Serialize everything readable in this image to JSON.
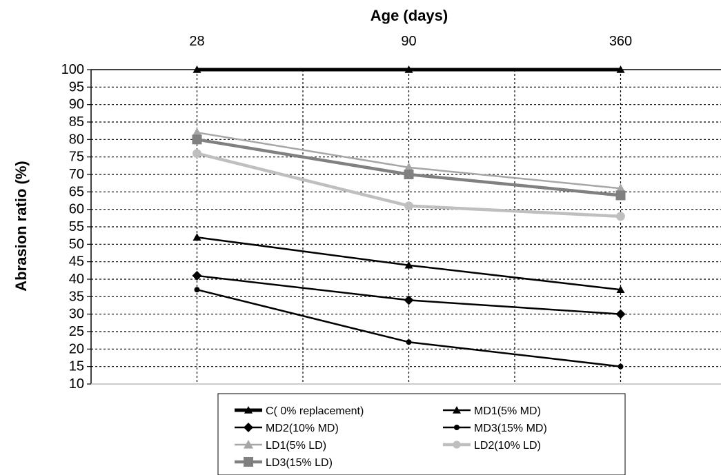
{
  "chart_data": {
    "type": "line",
    "xlabel": "Age (days)",
    "ylabel": "Abrasion ratio (%)",
    "categories": [
      "28",
      "90",
      "360"
    ],
    "ylim": [
      10,
      100
    ],
    "yticks": [
      10,
      15,
      20,
      25,
      30,
      35,
      40,
      45,
      50,
      55,
      60,
      65,
      70,
      75,
      80,
      85,
      90,
      95,
      100
    ],
    "x_axis_position": "top",
    "grid": true,
    "legend_position": "bottom",
    "series": [
      {
        "name": "C( 0% replacement)",
        "values": [
          100,
          100,
          100
        ],
        "color": "#000000",
        "marker": "triangle"
      },
      {
        "name": "MD1(5% MD)",
        "values": [
          52,
          44,
          37
        ],
        "color": "#000000",
        "marker": "triangle"
      },
      {
        "name": "MD2(10% MD)",
        "values": [
          41,
          34,
          30
        ],
        "color": "#000000",
        "marker": "diamond"
      },
      {
        "name": "MD3(15% MD)",
        "values": [
          37,
          22,
          15
        ],
        "color": "#000000",
        "marker": "circle"
      },
      {
        "name": "LD1(5% LD)",
        "values": [
          82,
          72,
          66
        ],
        "color": "#a6a6a6",
        "marker": "triangle"
      },
      {
        "name": "LD2(10% LD)",
        "values": [
          76,
          61,
          58
        ],
        "color": "#bfbfbf",
        "marker": "circle"
      },
      {
        "name": "LD3(15% LD)",
        "values": [
          80,
          70,
          64
        ],
        "color": "#808080",
        "marker": "square"
      }
    ]
  }
}
